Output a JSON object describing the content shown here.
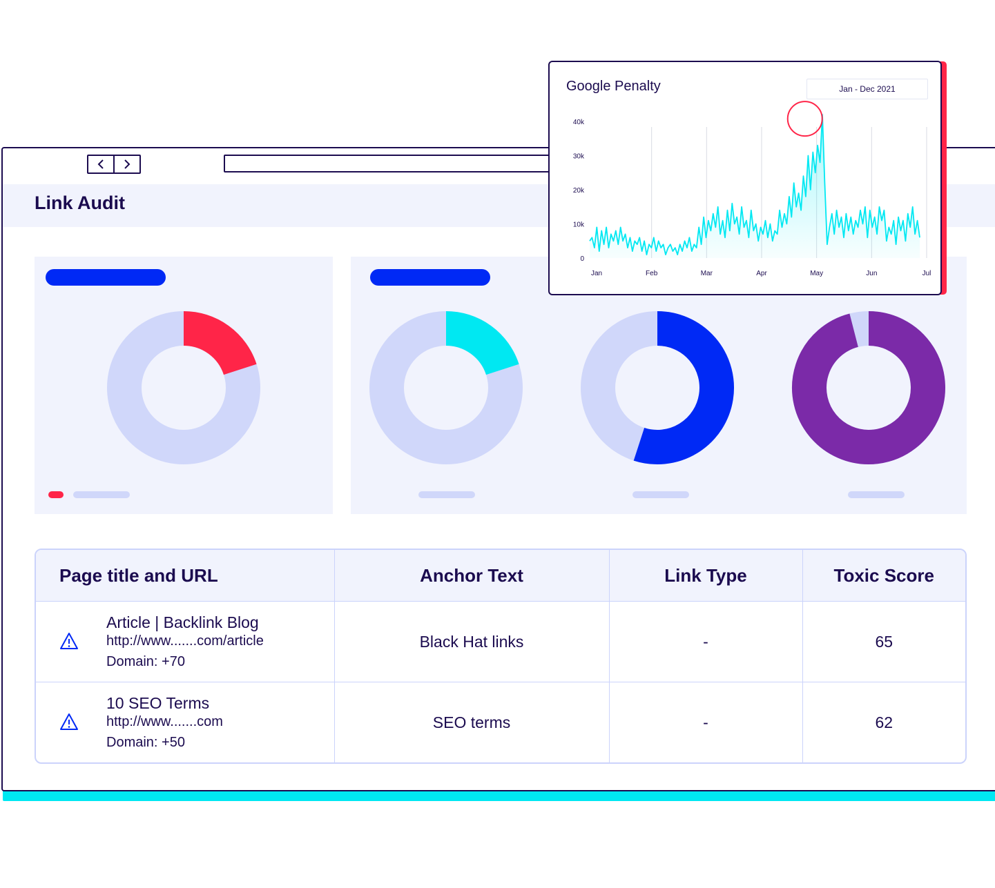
{
  "app": {
    "page_title": "Link Audit"
  },
  "colors": {
    "navy": "#1b0b4f",
    "blue": "#0029f5",
    "red": "#ff2548",
    "cyan": "#00e8f2",
    "purple": "#7b2aa8",
    "lavender": "#d0d7fa",
    "panel": "#f1f3fd"
  },
  "donuts": [
    {
      "fraction": 0.2,
      "color": "#ff2548"
    },
    {
      "fraction": 0.2,
      "color": "#00e8f2"
    },
    {
      "fraction": 0.55,
      "color": "#0029f5"
    },
    {
      "fraction": 0.96,
      "color": "#7b2aa8"
    }
  ],
  "table": {
    "headers": {
      "page": "Page title and URL",
      "anchor": "Anchor Text",
      "link_type": "Link Type",
      "toxic": "Toxic Score"
    },
    "rows": [
      {
        "title": "Article | Backlink Blog",
        "url": "http://www.......com/article",
        "domain": "Domain: +70",
        "anchor": "Black Hat links",
        "link_type": "-",
        "toxic": "65",
        "icon": "warning-icon"
      },
      {
        "title": "10 SEO Terms",
        "url": "http://www.......com",
        "domain": "Domain: +50",
        "anchor": "SEO terms",
        "link_type": "-",
        "toxic": "62",
        "icon": "warning-icon"
      }
    ]
  },
  "popup": {
    "title": "Google Penalty",
    "date_range": "Jan - Dec 2021"
  },
  "chart_data": {
    "type": "area",
    "title": "Google Penalty",
    "x_ticks": [
      "Jan",
      "Feb",
      "Mar",
      "Apr",
      "May",
      "Jun",
      "Jul"
    ],
    "y_ticks": [
      "0",
      "10k",
      "20k",
      "30k",
      "40k"
    ],
    "ylim": [
      0,
      40000
    ],
    "highlight": {
      "month_index": 3.8,
      "value": 42000
    },
    "series": [
      {
        "color": "#00e8f2",
        "values": [
          5000,
          6000,
          3000,
          9000,
          2000,
          8000,
          4000,
          9000,
          3000,
          7000,
          5000,
          8000,
          4000,
          9000,
          5000,
          7000,
          3000,
          6000,
          2000,
          5000,
          4000,
          6000,
          2000,
          5000,
          1000,
          4000,
          3000,
          6000,
          2000,
          5000,
          3000,
          4000,
          1000,
          3000,
          4000,
          2000,
          3000,
          1000,
          4000,
          2000,
          5000,
          3000,
          6000,
          2000,
          4000,
          3000,
          9000,
          4000,
          12000,
          6000,
          11000,
          8000,
          13000,
          9000,
          15000,
          7000,
          11000,
          6000,
          14000,
          8000,
          16000,
          10000,
          12000,
          7000,
          15000,
          9000,
          11000,
          6000,
          14000,
          8000,
          10000,
          5000,
          9000,
          7000,
          11000,
          6000,
          10000,
          5000,
          8000,
          7000,
          14000,
          9000,
          13000,
          10000,
          18000,
          12000,
          22000,
          15000,
          19000,
          14000,
          24000,
          18000,
          30000,
          20000,
          31000,
          25000,
          33000,
          28000,
          42000,
          22000,
          4000,
          9000,
          13000,
          7000,
          14000,
          9000,
          12000,
          6000,
          13000,
          8000,
          12000,
          7000,
          11000,
          9000,
          14000,
          10000,
          15000,
          6000,
          14000,
          9000,
          12000,
          7000,
          15000,
          11000,
          14000,
          5000,
          9000,
          7000,
          11000,
          4000,
          12000,
          8000,
          11000,
          5000,
          13000,
          9000,
          15000,
          7000,
          11000,
          6000
        ]
      }
    ]
  }
}
